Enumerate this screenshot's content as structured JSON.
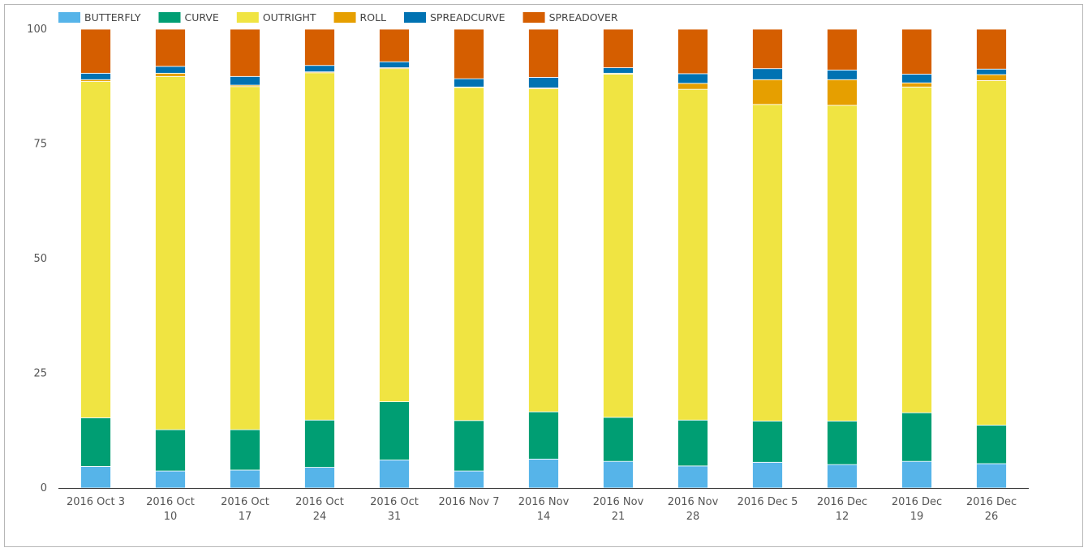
{
  "chart_data": {
    "type": "bar",
    "stacked": true,
    "title": "",
    "xlabel": "",
    "ylabel": "",
    "ylim": [
      0,
      100
    ],
    "yticks": [
      0,
      25,
      50,
      75,
      100
    ],
    "legend_position": "top-left",
    "grid": false,
    "categories": [
      [
        "2016 Oct 3"
      ],
      [
        "2016 Oct",
        "10"
      ],
      [
        "2016 Oct",
        "17"
      ],
      [
        "2016 Oct",
        "24"
      ],
      [
        "2016 Oct",
        "31"
      ],
      [
        "2016 Nov 7"
      ],
      [
        "2016 Nov",
        "14"
      ],
      [
        "2016 Nov",
        "21"
      ],
      [
        "2016 Nov",
        "28"
      ],
      [
        "2016 Dec 5"
      ],
      [
        "2016 Dec",
        "12"
      ],
      [
        "2016 Dec",
        "19"
      ],
      [
        "2016 Dec",
        "26"
      ]
    ],
    "series": [
      {
        "name": "BUTTERFLY",
        "color": "#56b4e9",
        "values": [
          4.7,
          3.7,
          3.9,
          4.5,
          6.1,
          3.7,
          6.3,
          5.8,
          4.8,
          5.6,
          5.1,
          5.8,
          5.3
        ]
      },
      {
        "name": "CURVE",
        "color": "#009e73",
        "values": [
          10.6,
          9.0,
          8.8,
          10.3,
          12.7,
          11.0,
          10.3,
          9.6,
          10.0,
          9.0,
          9.5,
          10.6,
          8.4
        ]
      },
      {
        "name": "OUTRIGHT",
        "color": "#f0e442",
        "values": [
          73.3,
          77.0,
          74.8,
          75.7,
          72.6,
          72.6,
          70.4,
          74.8,
          72.1,
          69.0,
          68.8,
          71.0,
          75.1
        ]
      },
      {
        "name": "ROLL",
        "color": "#e69f00",
        "values": [
          0.4,
          0.7,
          0.3,
          0.2,
          0.2,
          0.1,
          0.2,
          0.2,
          1.3,
          5.4,
          5.6,
          0.9,
          1.3
        ]
      },
      {
        "name": "SPREADCURVE",
        "color": "#0072b2",
        "values": [
          1.4,
          1.5,
          1.9,
          1.4,
          1.3,
          1.8,
          2.3,
          1.2,
          2.1,
          2.4,
          2.1,
          1.9,
          1.2
        ]
      },
      {
        "name": "SPREADOVER",
        "color": "#d55e00",
        "values": [
          9.6,
          8.1,
          10.3,
          7.9,
          7.1,
          10.8,
          10.5,
          8.4,
          9.7,
          8.6,
          8.9,
          9.8,
          8.7
        ]
      }
    ]
  }
}
